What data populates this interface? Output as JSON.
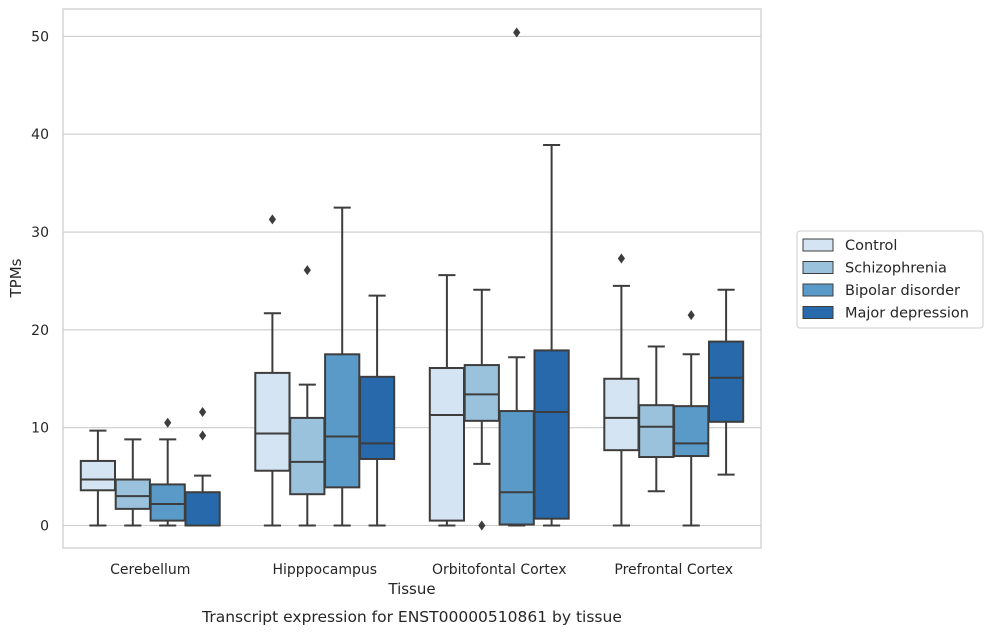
{
  "chart_data": {
    "type": "box",
    "caption": "Transcript expression for ENST00000510861 by tissue",
    "xlabel": "Tissue",
    "ylabel": "TPMs",
    "ylim": [
      -2.3,
      52.8
    ],
    "yticks": [
      0,
      10,
      20,
      30,
      40,
      50
    ],
    "grid": true,
    "legend_position": "right",
    "categories": [
      "Cerebellum",
      "Hipppocampus",
      "Orbitofontal Cortex",
      "Prefrontal Cortex"
    ],
    "series": [
      {
        "name": "Control",
        "color": "#d4e4f3",
        "boxes": [
          {
            "whislo": 0.0,
            "q1": 3.6,
            "med": 4.7,
            "q3": 6.6,
            "whishi": 9.7,
            "fliers": []
          },
          {
            "whislo": 0.0,
            "q1": 5.6,
            "med": 9.4,
            "q3": 15.6,
            "whishi": 21.7,
            "fliers": [
              31.3
            ]
          },
          {
            "whislo": 0.0,
            "q1": 0.5,
            "med": 11.3,
            "q3": 16.1,
            "whishi": 25.6,
            "fliers": []
          },
          {
            "whislo": 0.0,
            "q1": 7.7,
            "med": 11.0,
            "q3": 15.0,
            "whishi": 24.5,
            "fliers": [
              27.3
            ]
          }
        ]
      },
      {
        "name": "Schizophrenia",
        "color": "#9ac2dc",
        "boxes": [
          {
            "whislo": 0.0,
            "q1": 1.7,
            "med": 3.0,
            "q3": 4.7,
            "whishi": 8.8,
            "fliers": []
          },
          {
            "whislo": 0.0,
            "q1": 3.2,
            "med": 6.5,
            "q3": 11.0,
            "whishi": 14.4,
            "fliers": [
              26.1
            ]
          },
          {
            "whislo": 6.3,
            "q1": 10.7,
            "med": 13.4,
            "q3": 16.4,
            "whishi": 24.1,
            "fliers": [
              0.0
            ]
          },
          {
            "whislo": 3.5,
            "q1": 7.0,
            "med": 10.1,
            "q3": 12.3,
            "whishi": 18.3,
            "fliers": []
          }
        ]
      },
      {
        "name": "Bipolar disorder",
        "color": "#5a9ac8",
        "boxes": [
          {
            "whislo": 0.0,
            "q1": 0.5,
            "med": 2.2,
            "q3": 4.2,
            "whishi": 8.8,
            "fliers": [
              10.5
            ]
          },
          {
            "whislo": 0.0,
            "q1": 3.9,
            "med": 9.1,
            "q3": 17.5,
            "whishi": 32.5,
            "fliers": []
          },
          {
            "whislo": 0.0,
            "q1": 0.1,
            "med": 3.4,
            "q3": 11.7,
            "whishi": 17.2,
            "fliers": [
              50.4
            ]
          },
          {
            "whislo": 0.0,
            "q1": 7.1,
            "med": 8.4,
            "q3": 12.2,
            "whishi": 17.5,
            "fliers": [
              21.5
            ]
          }
        ]
      },
      {
        "name": "Major depression",
        "color": "#2769aa",
        "boxes": [
          {
            "whislo": 0.0,
            "q1": 0.0,
            "med": 0.0,
            "q3": 3.4,
            "whishi": 5.1,
            "fliers": [
              9.2,
              11.6
            ]
          },
          {
            "whislo": 0.0,
            "q1": 6.8,
            "med": 8.4,
            "q3": 15.2,
            "whishi": 23.5,
            "fliers": []
          },
          {
            "whislo": 0.0,
            "q1": 0.7,
            "med": 11.6,
            "q3": 17.9,
            "whishi": 38.9,
            "fliers": []
          },
          {
            "whislo": 5.2,
            "q1": 10.6,
            "med": 15.1,
            "q3": 18.8,
            "whishi": 24.1,
            "fliers": []
          }
        ]
      }
    ]
  }
}
